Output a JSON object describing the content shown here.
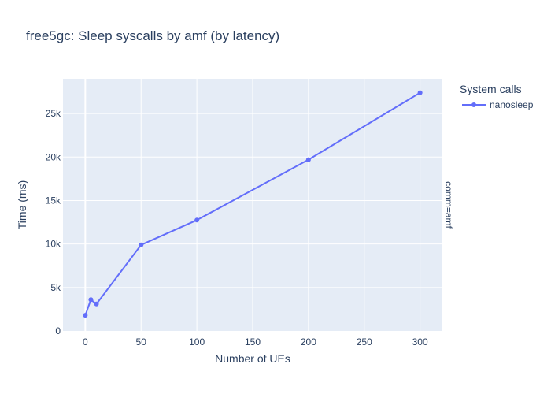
{
  "chart_data": {
    "type": "line",
    "title": "free5gc: Sleep syscalls by amf (by latency)",
    "xlabel": "Number of UEs",
    "ylabel": "Time (ms)",
    "xlim": [
      -20,
      320
    ],
    "ylim": [
      0,
      29000
    ],
    "x_ticks": [
      0,
      50,
      100,
      150,
      200,
      250,
      300
    ],
    "y_ticks": [
      0,
      5000,
      10000,
      15000,
      20000,
      25000
    ],
    "y_tick_labels": [
      "0",
      "5k",
      "10k",
      "15k",
      "20k",
      "25k"
    ],
    "legend_title": "System calls",
    "legend_position": "top-right",
    "facet_label": "comm=amf",
    "grid": true,
    "plot_background": "#e5ecf6",
    "series": [
      {
        "name": "nanosleep",
        "color": "#636efa",
        "x": [
          0,
          5,
          10,
          50,
          100,
          200,
          300
        ],
        "values": [
          1800,
          3600,
          3100,
          9900,
          12750,
          19700,
          27400
        ]
      }
    ]
  }
}
